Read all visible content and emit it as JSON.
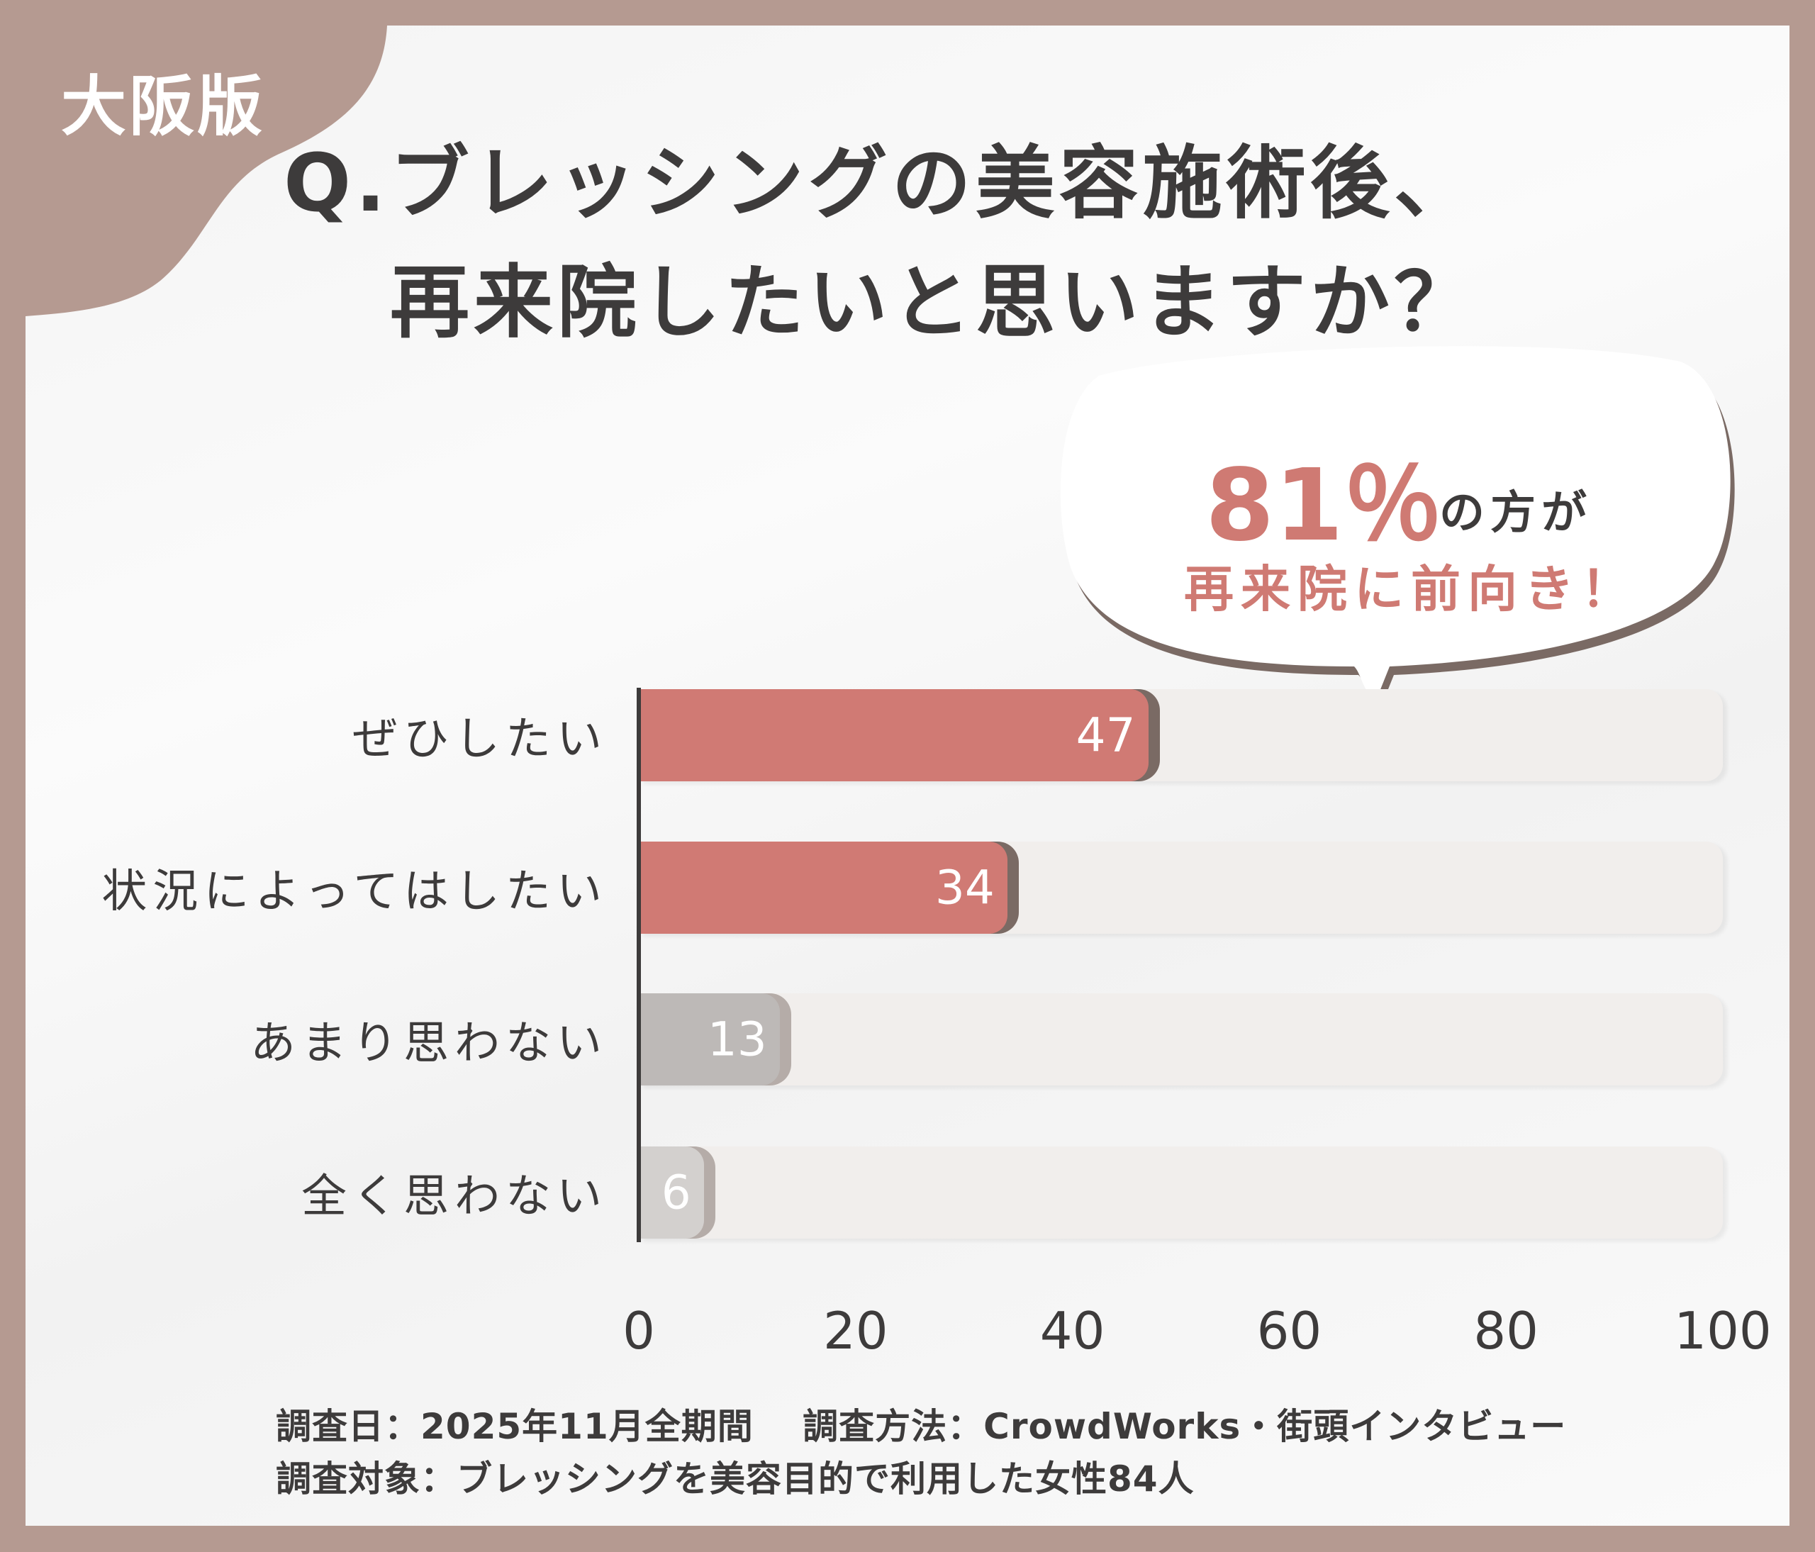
{
  "badge": "大阪版",
  "title_line1": "Q.ブレッシングの美容施術後、",
  "title_line2": "再来院したいと思いますか？",
  "callout": {
    "percent": "81％",
    "suffix": "の方が",
    "text": "再来院に前向き！"
  },
  "colors": {
    "positive": "#d07a74",
    "negative": "#bdb9b7",
    "negative_light": "#d3d0ce",
    "track": "#f1eeec",
    "border": "#b59a91"
  },
  "chart_data": {
    "type": "bar",
    "orientation": "horizontal",
    "categories": [
      "ぜひしたい",
      "状況によってはしたい",
      "あまり思わない",
      "全く思わない"
    ],
    "values": [
      47,
      34,
      13,
      6
    ],
    "xlim": [
      0,
      100
    ],
    "xticks": [
      "0",
      "20",
      "40",
      "60",
      "80",
      "100"
    ],
    "grid": false
  },
  "footer": {
    "line1": "調査日：2025年11月全期間　 調査方法：CrowdWorks・街頭インタビュー",
    "line2": "調査対象：ブレッシングを美容目的で利用した女性84人"
  }
}
